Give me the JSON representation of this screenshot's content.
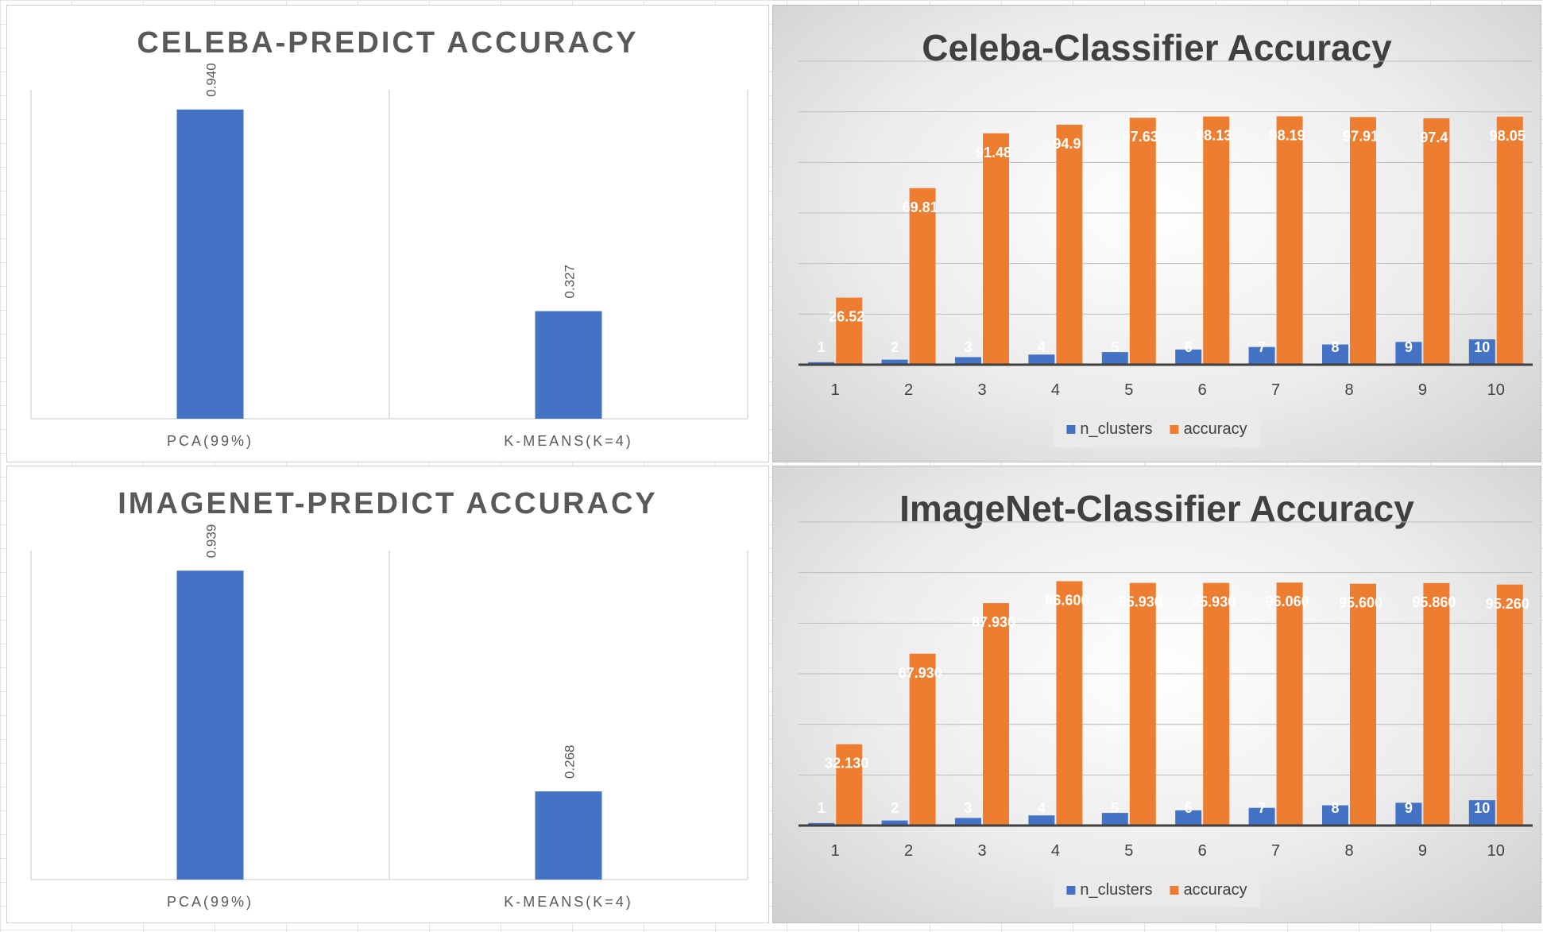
{
  "chart_data": [
    {
      "type": "bar",
      "title": "CELEBA-PREDICT ACCURACY",
      "categories": [
        "PCA(99%)",
        "K-MEANS(K=4)"
      ],
      "series": [
        {
          "values": [
            0.94,
            0.327
          ],
          "labels": [
            "0.940",
            "0.327"
          ],
          "color": "#4472C4"
        }
      ],
      "ylim": [
        0,
        1.0
      ],
      "grid": false,
      "legend": "none"
    },
    {
      "type": "bar",
      "title": "Celeba-Classifier Accuracy",
      "categories": [
        "1",
        "2",
        "3",
        "4",
        "5",
        "6",
        "7",
        "8",
        "9",
        "10"
      ],
      "series": [
        {
          "name": "n_clusters",
          "color": "#4472C4",
          "values": [
            1,
            2,
            3,
            4,
            5,
            6,
            7,
            8,
            9,
            10
          ],
          "labels": [
            "1",
            "2",
            "3",
            "4",
            "5",
            "6",
            "7",
            "8",
            "9",
            "10"
          ]
        },
        {
          "name": "accuracy",
          "color": "#ED7D31",
          "values": [
            26.52,
            69.81,
            91.48,
            94.9,
            97.63,
            98.13,
            98.19,
            97.91,
            97.4,
            98.05
          ],
          "labels": [
            "26.52",
            "69.81",
            "91.48",
            "94.9",
            "97.63",
            "98.13",
            "98.19",
            "97.91",
            "97.4",
            "98.05"
          ]
        }
      ],
      "ylim": [
        0,
        120
      ],
      "grid": true,
      "legend": "bottom"
    },
    {
      "type": "bar",
      "title": "IMAGENET-PREDICT ACCURACY",
      "categories": [
        "PCA(99%)",
        "K-MEANS(K=4)"
      ],
      "series": [
        {
          "values": [
            0.939,
            0.268
          ],
          "labels": [
            "0.939",
            "0.268"
          ],
          "color": "#4472C4"
        }
      ],
      "ylim": [
        0,
        1.0
      ],
      "grid": false,
      "legend": "none"
    },
    {
      "type": "bar",
      "title": "ImageNet-Classifier Accuracy",
      "categories": [
        "1",
        "2",
        "3",
        "4",
        "5",
        "6",
        "7",
        "8",
        "9",
        "10"
      ],
      "series": [
        {
          "name": "n_clusters",
          "color": "#4472C4",
          "values": [
            1,
            2,
            3,
            4,
            5,
            6,
            7,
            8,
            9,
            10
          ],
          "labels": [
            "1",
            "2",
            "3",
            "4",
            "5",
            "6",
            "7",
            "8",
            "9",
            "10"
          ]
        },
        {
          "name": "accuracy",
          "color": "#ED7D31",
          "values": [
            32.13,
            67.93,
            87.93,
            96.6,
            95.93,
            95.93,
            96.06,
            95.6,
            95.86,
            95.26
          ],
          "labels": [
            "32.130",
            "67.930",
            "87.930",
            "96.600",
            "95.930",
            "95.930",
            "96.060",
            "95.600",
            "95.860",
            "95.260"
          ]
        }
      ],
      "ylim": [
        0,
        120
      ],
      "grid": true,
      "legend": "bottom"
    }
  ]
}
